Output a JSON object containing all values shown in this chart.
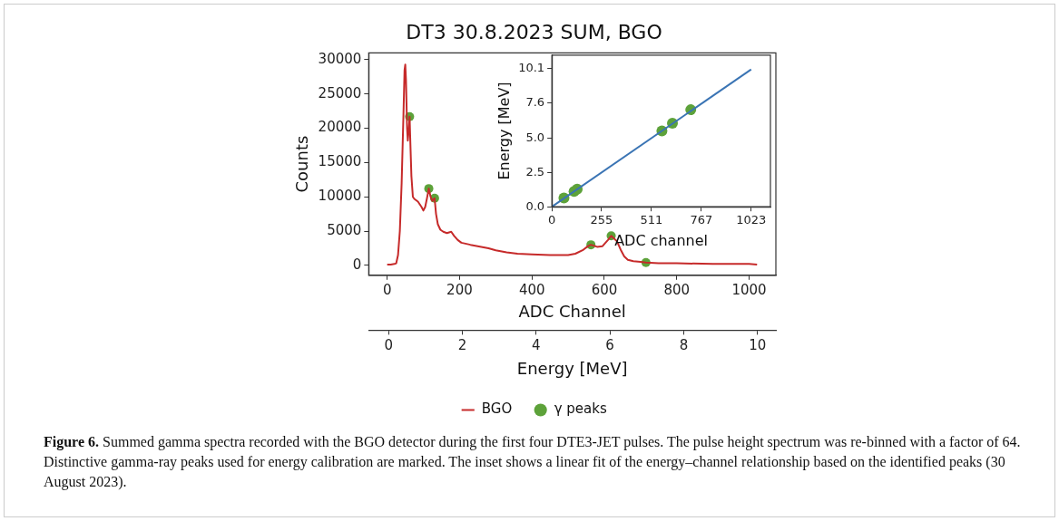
{
  "chart_data": [
    {
      "type": "line",
      "title": "DT3 30.8.2023 SUM, BGO",
      "xlabel": "ADC Channel",
      "ylabel": "Counts",
      "x2label": "Energy [MeV]",
      "xlim": [
        -51,
        1074
      ],
      "xticks": [
        0,
        200,
        400,
        600,
        800,
        1000
      ],
      "ylim": [
        -1450,
        31000
      ],
      "yticks": [
        0,
        5000,
        10000,
        15000,
        20000,
        25000,
        30000
      ],
      "x2lim": [
        -0.54,
        10.5
      ],
      "x2ticks": [
        0,
        2,
        4,
        6,
        8,
        10
      ],
      "legend": "bottom",
      "annotations": [
        "Figure 6.",
        "Summed gamma spectra recorded with the BGO detector during the first four DTE3-JET pulses. The pulse height spectrum was re-binned with a factor of 64. Distinctive gamma-ray peaks used for energy calibration are marked. The inset shows a linear fit of the energy–channel relationship based on the identified peaks (30 August 2023)."
      ],
      "series": [
        {
          "name": "BGO",
          "type": "line",
          "color": "#c62a2a",
          "marker": "none",
          "x": [
            0,
            10,
            20,
            25,
            30,
            35,
            40,
            45,
            48,
            50,
            52,
            55,
            57,
            60,
            62,
            64,
            67,
            71,
            75,
            85,
            95,
            100,
            105,
            110,
            115,
            120,
            125,
            131,
            135,
            140,
            147,
            155,
            165,
            177,
            185,
            195,
            205,
            230,
            260,
            280,
            300,
            330,
            360,
            400,
            450,
            500,
            520,
            540,
            555,
            563,
            580,
            595,
            610,
            619,
            635,
            645,
            655,
            665,
            680,
            700,
            715,
            750,
            800,
            900,
            1000,
            1022
          ],
          "values": [
            100,
            100,
            200,
            300,
            1500,
            5000,
            12000,
            22000,
            28500,
            29300,
            27000,
            20000,
            18200,
            20000,
            21700,
            18000,
            13000,
            10000,
            9700,
            9300,
            8500,
            8000,
            8500,
            9800,
            11200,
            10000,
            9400,
            9800,
            7500,
            6000,
            5200,
            4900,
            4700,
            4900,
            4300,
            3700,
            3300,
            3000,
            2700,
            2500,
            2200,
            1900,
            1700,
            1600,
            1500,
            1500,
            1700,
            2200,
            2800,
            3000,
            2700,
            2800,
            3700,
            4300,
            3500,
            2300,
            1300,
            800,
            600,
            500,
            400,
            300,
            300,
            200,
            200,
            100
          ]
        },
        {
          "name": "γ peaks",
          "type": "scatter",
          "color": "#5da23a",
          "marker": "circle",
          "x": [
            62,
            115,
            131,
            563,
            619,
            715
          ],
          "values": [
            21700,
            11200,
            9800,
            3000,
            4300,
            400
          ]
        }
      ]
    },
    {
      "type": "line",
      "xlabel": "ADC channel",
      "ylabel": "Energy [MeV]",
      "xlim": [
        0,
        1122
      ],
      "xticks": [
        0,
        255,
        511,
        767,
        1023
      ],
      "ylim": [
        0,
        11.1
      ],
      "yticks": [
        {
          "value": 0,
          "label": "0.0"
        },
        2.5,
        {
          "value": 5,
          "label": "5.0"
        },
        7.6,
        10.1
      ],
      "series": [
        {
          "type": "line",
          "color": "#3a74b4",
          "marker": "none",
          "x": [
            0,
            1023
          ],
          "values": [
            0,
            10.05
          ]
        },
        {
          "type": "scatter",
          "color": "#5da23a",
          "marker": "circle",
          "x": [
            62,
            114,
            130,
            565,
            619,
            713
          ],
          "values": [
            0.65,
            1.12,
            1.29,
            5.55,
            6.11,
            7.1
          ]
        }
      ]
    }
  ]
}
